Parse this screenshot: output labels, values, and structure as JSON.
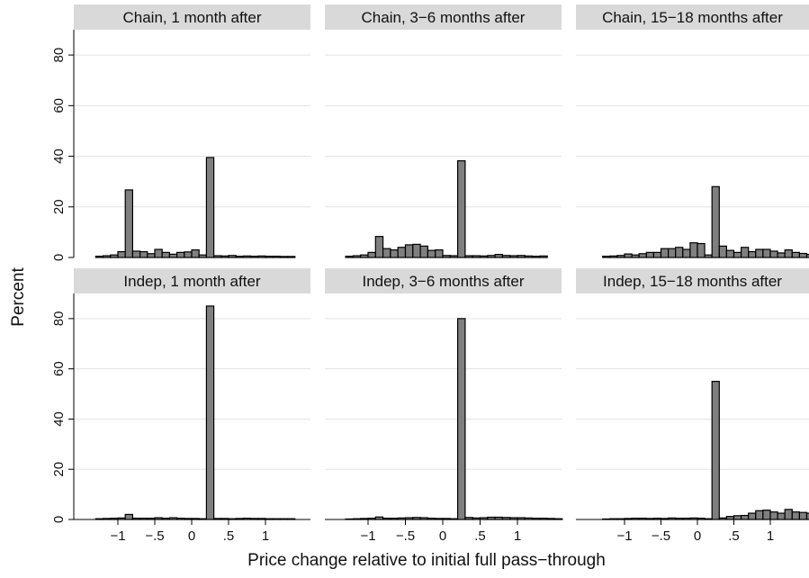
{
  "chart_data": {
    "type": "bar",
    "subtype": "histogram-facet-grid",
    "xlabel": "Price change relative to initial full pass−through",
    "ylabel": "Percent",
    "ylim": [
      0,
      90
    ],
    "yticks": [
      0,
      20,
      40,
      60,
      80
    ],
    "ytick_labels": [
      "0",
      "20",
      "40",
      "60",
      "80"
    ],
    "xlim": [
      -1.45,
      1.45
    ],
    "xticks": [
      -1,
      -0.5,
      0,
      0.5,
      1
    ],
    "xtick_labels": [
      "−1",
      "−.5",
      "0",
      ".5",
      "1"
    ],
    "grid": true,
    "bin_width": 0.1,
    "bin_start": -1.3,
    "panels": [
      {
        "title": "Chain, 1 month after",
        "values": [
          0.5,
          0.7,
          1.0,
          2.3,
          26.7,
          2.5,
          2.3,
          1.5,
          3.2,
          2.0,
          1.3,
          2.0,
          2.2,
          3.0,
          1.0,
          39.5,
          0.7,
          0.6,
          0.8,
          0.5,
          0.6,
          0.5,
          0.6,
          0.5,
          0.5,
          0.4,
          0.4
        ]
      },
      {
        "title": "Chain, 3−6 months after",
        "values": [
          0.5,
          0.7,
          1.0,
          2.0,
          8.3,
          3.5,
          3.0,
          4.0,
          5.0,
          5.2,
          4.5,
          2.8,
          3.0,
          0.8,
          0.7,
          38.2,
          0.7,
          0.7,
          0.6,
          0.8,
          1.2,
          0.8,
          0.7,
          0.8,
          0.6,
          0.5,
          0.6
        ]
      },
      {
        "title": "Chain, 15−18 months after",
        "values": [
          0.5,
          0.6,
          0.8,
          1.4,
          1.0,
          1.5,
          2.0,
          2.0,
          3.5,
          3.5,
          4.0,
          3.2,
          5.8,
          5.5,
          1.0,
          28.0,
          4.5,
          2.8,
          2.0,
          4.0,
          2.3,
          3.2,
          3.2,
          2.5,
          1.8,
          3.0,
          2.0,
          1.6,
          1.2,
          1.0,
          0.6
        ]
      },
      {
        "title": "Indep, 1 month after",
        "values": [
          0.3,
          0.4,
          0.5,
          0.6,
          2.0,
          0.5,
          0.5,
          0.5,
          0.7,
          0.5,
          0.7,
          0.5,
          0.4,
          0.4,
          0.3,
          85.0,
          0.4,
          0.4,
          0.3,
          0.4,
          0.5,
          0.4,
          0.4,
          0.3,
          0.3,
          0.3,
          0.3
        ]
      },
      {
        "title": "Indep, 3−6 months after",
        "values": [
          0.2,
          0.3,
          0.4,
          0.5,
          1.0,
          0.5,
          0.5,
          0.6,
          0.7,
          0.8,
          0.7,
          0.5,
          0.4,
          0.4,
          0.3,
          80.0,
          0.8,
          0.6,
          0.7,
          0.9,
          0.9,
          0.8,
          0.7,
          0.7,
          0.6,
          0.5,
          0.5,
          0.4,
          0.3
        ]
      },
      {
        "title": "Indep, 15−18 months after",
        "values": [
          0.2,
          0.3,
          0.3,
          0.4,
          0.5,
          0.5,
          0.4,
          0.5,
          0.4,
          0.6,
          0.5,
          0.5,
          0.6,
          0.5,
          0.3,
          55.0,
          0.6,
          1.2,
          1.5,
          1.6,
          2.5,
          3.5,
          3.7,
          3.0,
          2.5,
          4.0,
          3.0,
          2.8,
          2.5,
          1.5,
          2.5,
          0.8
        ]
      }
    ]
  }
}
